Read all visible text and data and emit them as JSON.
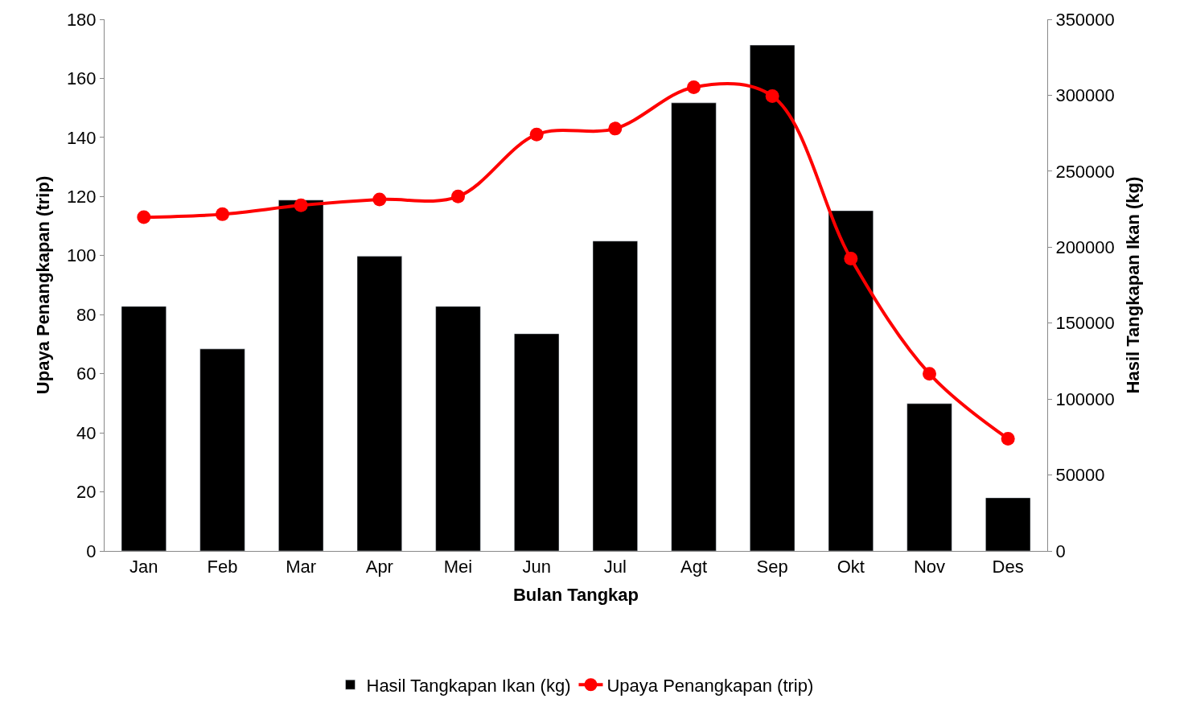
{
  "chart_data": {
    "type": "bar",
    "xlabel": "Bulan Tangkap",
    "ylabel": "Upaya Penangkapan (trip)",
    "y2label": "Hasil Tangkapan Ikan (kg)",
    "categories": [
      "Jan",
      "Feb",
      "Mar",
      "Apr",
      "Mei",
      "Jun",
      "Jul",
      "Agt",
      "Sep",
      "Okt",
      "Nov",
      "Des"
    ],
    "series": [
      {
        "name": "Hasil Tangkapan Ikan (kg)",
        "axis": "y2",
        "color": "#000000",
        "values": [
          161000,
          133000,
          231000,
          194000,
          161000,
          143000,
          204000,
          295000,
          333000,
          224000,
          97000,
          35000
        ]
      },
      {
        "name": "Upaya Penangkapan (trip)",
        "type": "line",
        "axis": "y",
        "color": "#ff0000",
        "marker": "circle",
        "values": [
          113,
          114,
          117,
          119,
          120,
          141,
          143,
          157,
          154,
          99,
          60,
          38
        ]
      }
    ],
    "ylim": [
      0,
      180
    ],
    "yticks": [
      0,
      20,
      40,
      60,
      80,
      100,
      120,
      140,
      160,
      180
    ],
    "y2lim": [
      0,
      350000
    ],
    "y2ticks": [
      0,
      50000,
      100000,
      150000,
      200000,
      250000,
      300000,
      350000
    ],
    "legend": "bottom"
  }
}
